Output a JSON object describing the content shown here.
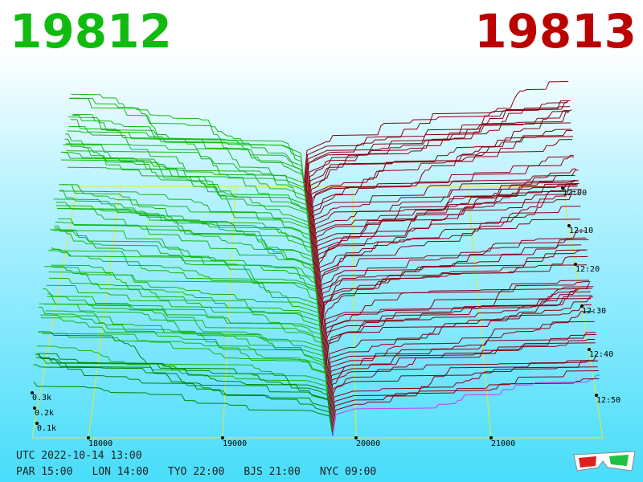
{
  "header": {
    "bid_price": "19812",
    "ask_price": "19813"
  },
  "price_axis": [
    "18000",
    "19000",
    "20000",
    "21000"
  ],
  "depth_axis": [
    "0.3k",
    "0.2k",
    "0.1k"
  ],
  "time_axis": [
    "12:00",
    "12:10",
    "12:20",
    "12:30",
    "12:40",
    "12:50"
  ],
  "footer": {
    "utc": "UTC 2022-10-14 13:00",
    "clocks": [
      "PAR 15:00",
      "LON 14:00",
      "TYO 22:00",
      "BJS 21:00",
      "NYC 09:00"
    ]
  }
}
